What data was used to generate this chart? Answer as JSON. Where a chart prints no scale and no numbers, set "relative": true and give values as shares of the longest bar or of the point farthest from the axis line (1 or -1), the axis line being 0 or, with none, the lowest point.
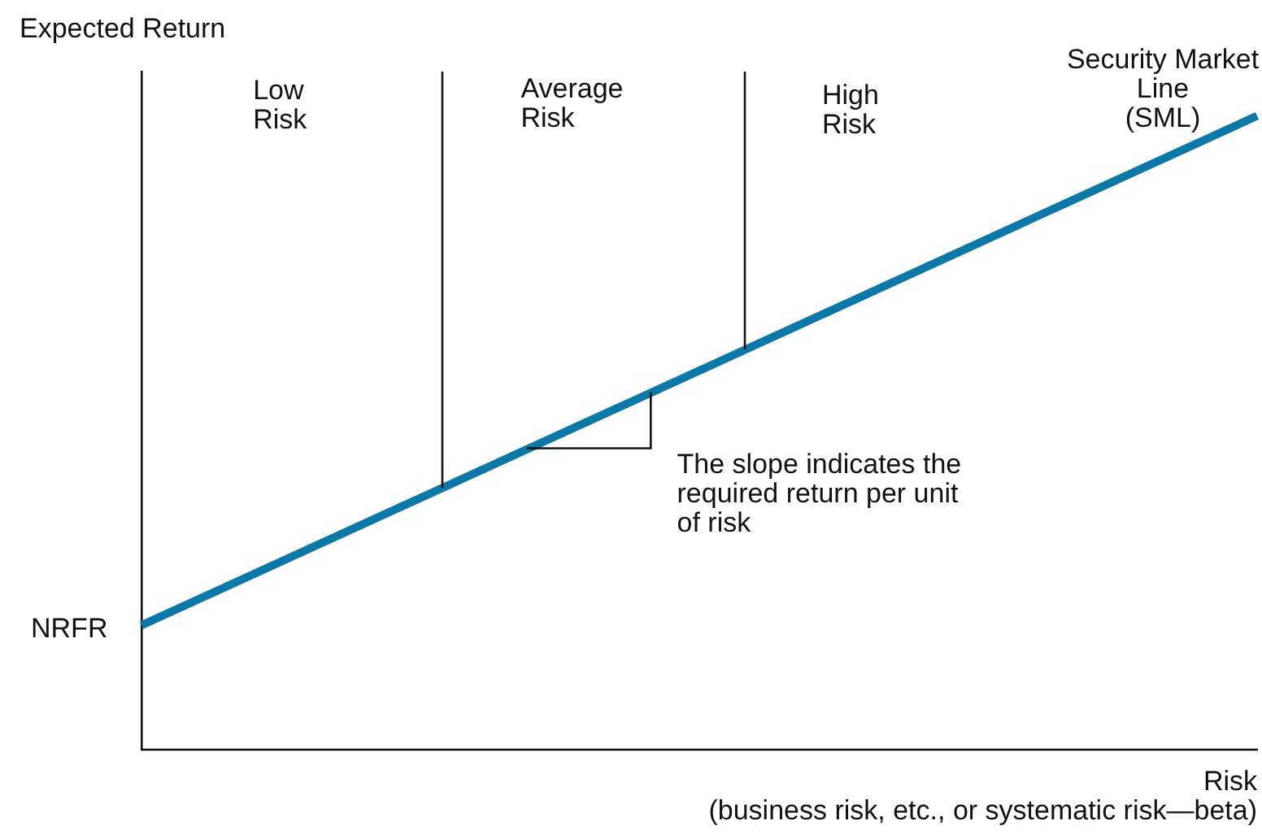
{
  "chart_data": {
    "type": "line",
    "relative": true,
    "xlabel": "Risk\n(business risk, etc., or systematic risk—beta)",
    "ylabel": "Expected Return",
    "categories": [
      null,
      null
    ],
    "series": [
      {
        "name": "Security Market Line (SML)",
        "color": "#0b78a8",
        "values": [
          0.196,
          1
        ]
      }
    ],
    "annotations": [
      "Low Risk",
      "Average Risk",
      "High Risk",
      "NRFR",
      "The slope indicates the required return per unit of risk"
    ],
    "grid": false,
    "legend": false,
    "marker": "none",
    "line_style": "solid"
  }
}
